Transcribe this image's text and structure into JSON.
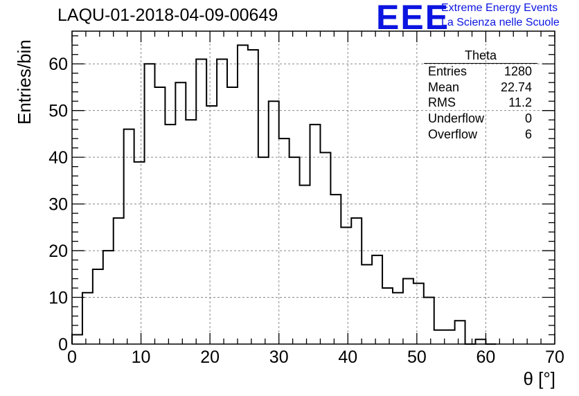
{
  "header": {
    "title": "LAQU-01-2018-04-09-00649",
    "logo_text": "EEE",
    "logo_line1": "Extreme Energy Events",
    "logo_line2": "La Scienza nelle Scuole"
  },
  "stats": {
    "title": "Theta",
    "rows": [
      {
        "label": "Entries",
        "value": "1280"
      },
      {
        "label": "Mean",
        "value": "22.74"
      },
      {
        "label": "RMS",
        "value": "11.2"
      },
      {
        "label": "Underflow",
        "value": "0"
      },
      {
        "label": "Overflow",
        "value": "6"
      }
    ]
  },
  "colors": {
    "line": "#000000",
    "logo": "#0b14e0",
    "grid": "#888888"
  },
  "chart_data": {
    "type": "bar",
    "title": "LAQU-01-2018-04-09-00649",
    "xlabel": "θ [°]",
    "ylabel": "Entries/bin",
    "xlim": [
      0,
      70
    ],
    "ylim": [
      0,
      67
    ],
    "grid": true,
    "legend": "top-right",
    "x_ticks": [
      0,
      10,
      20,
      30,
      40,
      50,
      60,
      70
    ],
    "y_ticks": [
      0,
      10,
      20,
      30,
      40,
      50,
      60
    ],
    "bin_width": 1.5,
    "bin_start": 0,
    "values": [
      2,
      11,
      16,
      20,
      27,
      46,
      39,
      60,
      55,
      47,
      56,
      48,
      61,
      51,
      61,
      55,
      64,
      63,
      40,
      52,
      44,
      40,
      34,
      47,
      41,
      32,
      25,
      27,
      17,
      19,
      12,
      11,
      14,
      13,
      10,
      3,
      3,
      5,
      0,
      1,
      0
    ]
  }
}
